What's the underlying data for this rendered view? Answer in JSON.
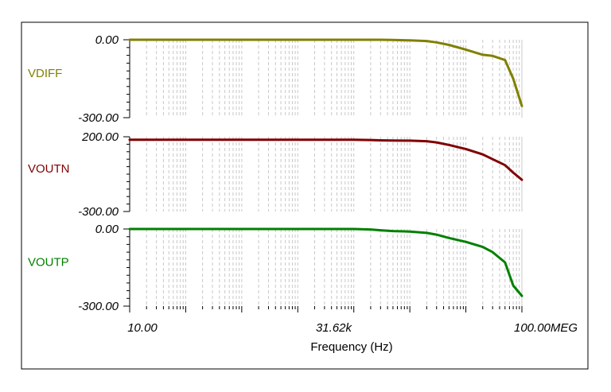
{
  "chart_data": {
    "type": "line",
    "xlabel": "Frequency (Hz)",
    "xscale": "log",
    "xlim": [
      10,
      100000000
    ],
    "x_tick_labels": [
      "10.00",
      "31.62k",
      "100.00MEG"
    ],
    "grid": "vertical log grid (dashed)",
    "x": [
      10,
      100,
      1000,
      10000,
      100000,
      200000,
      300000,
      500000,
      1000000,
      2000000,
      3000000,
      5000000,
      10000000,
      20000000,
      30000000,
      50000000,
      70000000,
      100000000
    ],
    "series": [
      {
        "name": "VDIFF",
        "color": "#808000",
        "ylim": [
          -300,
          0
        ],
        "y_tick_labels": [
          "0.00",
          "-300.00"
        ],
        "values": [
          0,
          0,
          0,
          0,
          0,
          0,
          0,
          -1,
          -2,
          -5,
          -10,
          -20,
          -38,
          -58,
          -62,
          -78,
          -150,
          -255
        ]
      },
      {
        "name": "VOUTN",
        "color": "#800000",
        "ylim": [
          -300,
          200
        ],
        "y_tick_labels": [
          "200.00",
          "-300.00"
        ],
        "values": [
          180,
          180,
          180,
          180,
          180,
          178,
          176,
          175,
          174,
          170,
          162,
          145,
          118,
          82,
          50,
          10,
          -40,
          -88
        ]
      },
      {
        "name": "VOUTP",
        "color": "#008000",
        "ylim": [
          -300,
          0
        ],
        "y_tick_labels": [
          "0.00",
          "-300.00"
        ],
        "values": [
          0,
          0,
          0,
          0,
          0,
          -2,
          -5,
          -8,
          -10,
          -15,
          -22,
          -35,
          -50,
          -70,
          -90,
          -130,
          -220,
          -260
        ]
      }
    ]
  }
}
